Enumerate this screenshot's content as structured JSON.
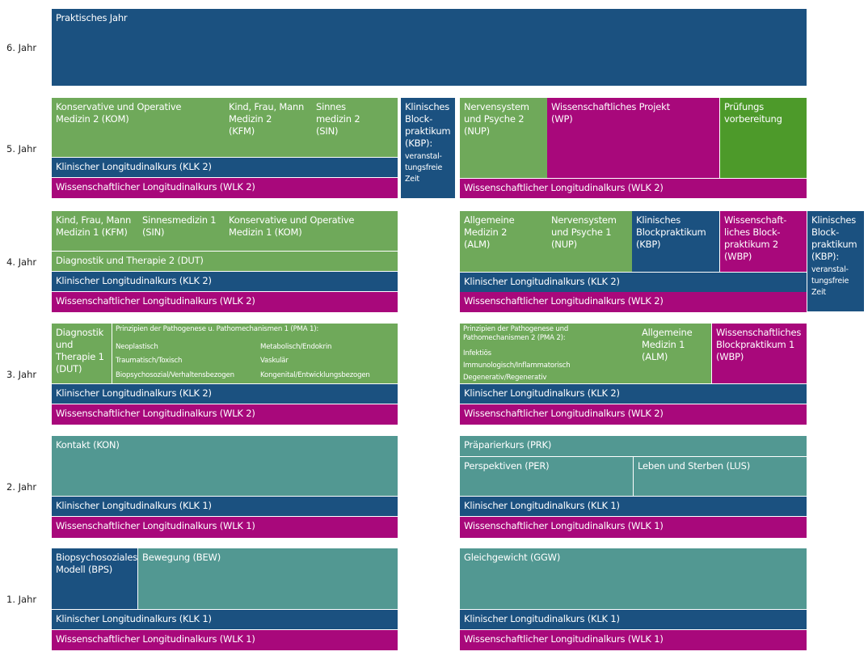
{
  "colors": {
    "blue": "#1b5180",
    "green": "#6fa95a",
    "magenta": "#a8087b",
    "teal": "#529892",
    "dark_green": "#4d9a2a"
  },
  "years": {
    "y6": "6. Jahr",
    "y5": "5. Jahr",
    "y4": "4. Jahr",
    "y3": "3. Jahr",
    "y2": "2. Jahr",
    "y1": "1. Jahr"
  },
  "blocks": {
    "pj": "Praktisches Jahr",
    "y5_kom": "Konservative und   Operative\nMedizin 2 (KOM)",
    "y5_kfm": "Kind, Frau, Mann\nMedizin 2\n(KFM)",
    "y5_sin": "Sinnes\nmedizin 2\n(SIN)",
    "y5_klk_l": "Klinischer Longitudinalkurs (KLK 2)",
    "y5_wlk_l": "Wissenschaftlicher Longitudinalkurs (WLK 2)",
    "y5_kbp": "Klinisches\nBlock-\npraktikum\n(KBP):",
    "y5_kbp_note": "veranstal-\ntungsfreie\nZeit",
    "y5_nup": "Nervensystem\nund Psyche 2\n(NUP)",
    "y5_wp": "Wissenschaftliches  Projekt\n(WP)",
    "y5_pv": "Prüfungs\nvorbereitung",
    "y5_wlk_r": "Wissenschaftlicher Longitudinalkurs (WLK 2)",
    "y4_kfm": "Kind, Frau, Mann\nMedizin 1 (KFM)",
    "y4_sin": "Sinnesmedizin 1\n(SIN)",
    "y4_kom": "Konservative und   Operative\nMedizin 1 (KOM)",
    "y4_dut": "Diagnostik und Therapie 2 (DUT)",
    "y4_klk_l": "Klinischer Longitudinalkurs (KLK 2)",
    "y4_wlk_l": "Wissenschaftlicher Longitudinalkurs (WLK 2)",
    "y4_alm": "Allgemeine\nMedizin 2\n(ALM)",
    "y4_nup": "Nervensystem\nund Psyche 1\n(NUP)",
    "y4_kbp": "Klinisches\nBlockpraktikum\n(KBP)",
    "y4_wbp": "Wissenschaft-\nliches Block-\npraktikum 2\n(WBP)",
    "y4_klk_r": "Klinischer Longitudinalkurs (KLK 2)",
    "y4_wlk_r": "Wissenschaftlicher Longitudinalkurs (WLK 2)",
    "y4_kbp2": "Klinisches\nBlock-\npraktikum\n(KBP):",
    "y4_kbp2_note": "veranstal-\ntungsfreie\nZeit",
    "y3_dut": "Diagnostik\nund\nTherapie 1\n(DUT)",
    "y3_pma1": "Prinzipien der Pathogenese u. Pathomechanismen 1 (PMA 1):",
    "y3_neo": "Neoplastisch",
    "y3_met": "Metabolisch/Endokrin",
    "y3_trau": "Traumatisch/Toxisch",
    "y3_vas": "Vaskulär",
    "y3_bio": "Biopsychosozial/Verhaltensbezogen",
    "y3_kon": "Kongenital/Entwicklungsbezogen",
    "y3_klk_l": "Klinischer Longitudinalkurs (KLK 2)",
    "y3_wlk_l": "Wissenschaftlicher Longitudinalkurs (WLK 2)",
    "y3_pma2": "Prinzipien der  Pathogenese und\nPathomechanismen 2 (PMA 2):",
    "y3_inf": "Infektiös",
    "y3_imm": "Immunologisch/Inflammatorisch",
    "y3_deg": "Degenerativ/Regenerativ",
    "y3_alm": "Allgemeine\nMedizin 1\n(ALM)",
    "y3_wbp": "Wissenschaftliches\nBlockpraktikum 1\n(WBP)",
    "y3_klk_r": "Klinischer Longitudinalkurs (KLK 2)",
    "y3_wlk_r": "Wissenschaftlicher Longitudinalkurs (WLK 2)",
    "y2_kon": "Kontakt (KON)",
    "y2_klk_l": "Klinischer Longitudinalkurs (KLK 1)",
    "y2_wlk_l": "Wissenschaftlicher Longitudinalkurs (WLK 1)",
    "y2_prk": "Präparierkurs (PRK)",
    "y2_per": "Perspektiven (PER)",
    "y2_lus": "Leben und Sterben (LUS)",
    "y2_klk_r": "Klinischer Longitudinalkurs (KLK 1)",
    "y2_wlk_r": "Wissenschaftlicher Longitudinalkurs (WLK 1)",
    "y1_bps": "Biopsychosoziales\nModell (BPS)",
    "y1_bew": "Bewegung (BEW)",
    "y1_klk_l": "Klinischer Longitudinalkurs (KLK 1)",
    "y1_wlk_l": "Wissenschaftlicher Longitudinalkurs (WLK 1)",
    "y1_ggw": "Gleichgewicht (GGW)",
    "y1_klk_r": "Klinischer Longitudinalkurs (KLK 1)",
    "y1_wlk_r": "Wissenschaftlicher Longitudinalkurs (WLK 1)"
  }
}
